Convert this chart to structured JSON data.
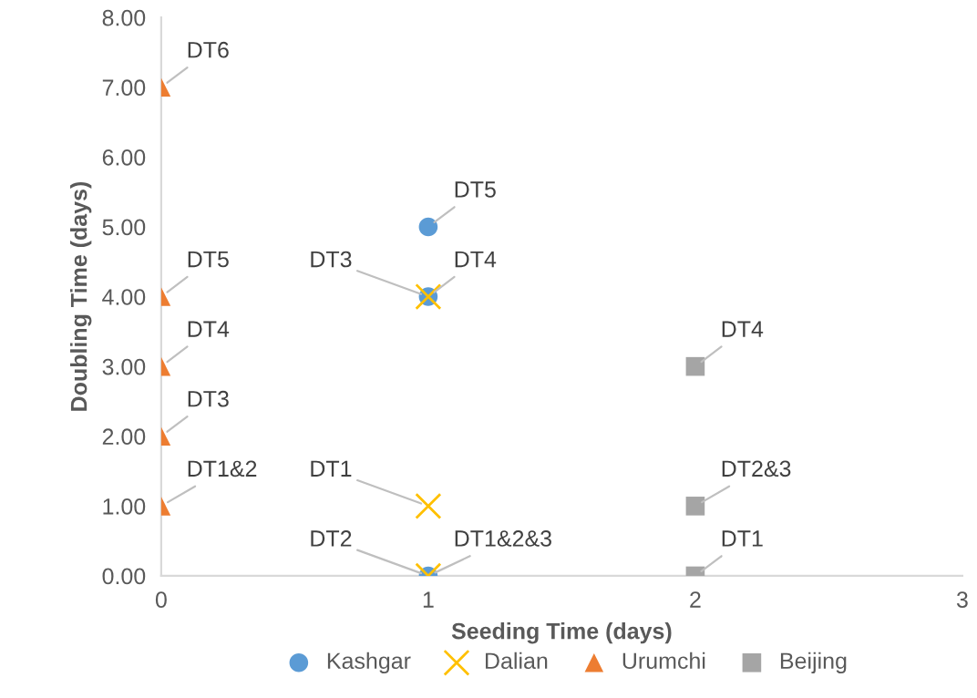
{
  "chart_data": {
    "type": "scatter",
    "xlabel": "Seeding Time (days)",
    "ylabel": "Doubling Time (days)",
    "xlim": [
      0,
      3
    ],
    "xticks": [
      0,
      1,
      2,
      3
    ],
    "ylim": [
      0,
      8
    ],
    "yticks": [
      {
        "value": 0,
        "label": "0.00"
      },
      {
        "value": 1,
        "label": "1.00"
      },
      {
        "value": 2,
        "label": "2.00"
      },
      {
        "value": 3,
        "label": "3.00"
      },
      {
        "value": 4,
        "label": "4.00"
      },
      {
        "value": 5,
        "label": "5.00"
      },
      {
        "value": 6,
        "label": "6.00"
      },
      {
        "value": 7,
        "label": "7.00"
      },
      {
        "value": 8,
        "label": "8.00"
      }
    ],
    "grid": false,
    "legend": "bottom",
    "series": [
      {
        "name": "Kashgar",
        "color": "#5b9bd5",
        "marker": "circle",
        "x": [
          1,
          1,
          1
        ],
        "values": [
          5,
          4,
          0
        ],
        "value_labels": [
          "DT5",
          "DT4",
          "DT1&2&3"
        ]
      },
      {
        "name": "Dalian",
        "color": "#ffc000",
        "marker": "cross",
        "x": [
          1,
          1,
          1
        ],
        "values": [
          4,
          1,
          0
        ],
        "value_labels": [
          "DT3",
          "DT1",
          "DT2"
        ]
      },
      {
        "name": "Urumchi",
        "color": "#ed7d31",
        "marker": "triangle",
        "x": [
          0,
          0,
          0,
          0,
          0
        ],
        "values": [
          7,
          4,
          3,
          2,
          1
        ],
        "value_labels": [
          "DT6",
          "DT5",
          "DT4",
          "DT3",
          "DT1&2"
        ]
      },
      {
        "name": "Beijing",
        "color": "#a5a5a5",
        "marker": "square",
        "x": [
          2,
          2,
          2
        ],
        "values": [
          3,
          1,
          0
        ],
        "value_labels": [
          "DT4",
          "DT2&3",
          "DT1"
        ]
      }
    ]
  }
}
